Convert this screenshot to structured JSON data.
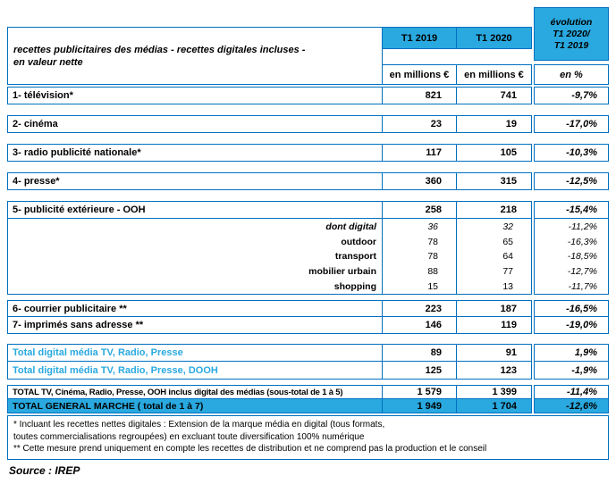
{
  "colors": {
    "accent": "#29A9E0",
    "border": "#0070C0"
  },
  "table": {
    "corner": {
      "line1": "recettes publicitaires des médias - recettes digitales incluses -",
      "line2": "en valeur nette"
    },
    "col_headers": {
      "t1_2019": "T1 2019",
      "t1_2020": "T1 2020",
      "evolution": [
        "évolution",
        "T1 2020/",
        "T1 2019"
      ]
    },
    "units": {
      "millions1": "en millions €",
      "millions2": "en millions €",
      "percent": "en %"
    },
    "rows": {
      "tv": {
        "label": "1- télévision*",
        "v2019": "821",
        "v2020": "741",
        "evol": "-9,7%"
      },
      "cinema": {
        "label": "2- cinéma",
        "v2019": "23",
        "v2020": "19",
        "evol": "-17,0%"
      },
      "radio": {
        "label": "3- radio publicité nationale*",
        "v2019": "117",
        "v2020": "105",
        "evol": "-10,3%"
      },
      "presse": {
        "label": "4- presse*",
        "v2019": "360",
        "v2020": "315",
        "evol": "-12,5%"
      },
      "ooh": {
        "label": "5- publicité extérieure - OOH",
        "v2019": "258",
        "v2020": "218",
        "evol": "-15,4%"
      },
      "ooh_sub": [
        {
          "label": "dont digital",
          "v2019": "36",
          "v2020": "32",
          "evol": "-11,2%"
        },
        {
          "label": "outdoor",
          "v2019": "78",
          "v2020": "65",
          "evol": "-16,3%"
        },
        {
          "label": "transport",
          "v2019": "78",
          "v2020": "64",
          "evol": "-18,5%"
        },
        {
          "label": "mobilier urbain",
          "v2019": "88",
          "v2020": "77",
          "evol": "-12,7%"
        },
        {
          "label": "shopping",
          "v2019": "15",
          "v2020": "13",
          "evol": "-11,7%"
        }
      ],
      "courrier": {
        "label": "6- courrier publicitaire **",
        "v2019": "223",
        "v2020": "187",
        "evol": "-16,5%"
      },
      "imprimes": {
        "label": "7- imprimés sans adresse **",
        "v2019": "146",
        "v2020": "119",
        "evol": "-19,0%"
      },
      "digital1": {
        "label": "Total digital média TV, Radio, Presse",
        "v2019": "89",
        "v2020": "91",
        "evol": "1,9%"
      },
      "digital2": {
        "label": "Total digital média TV, Radio, Presse, DOOH",
        "v2019": "125",
        "v2020": "123",
        "evol": "-1,9%"
      },
      "total_sub": {
        "label": "TOTAL TV, Cinéma, Radio, Presse, OOH inclus digital des médias (sous-total de 1 à 5)",
        "v2019": "1 579",
        "v2020": "1 399",
        "evol": "-11,4%"
      },
      "total_general": {
        "label": "TOTAL GENERAL MARCHE ( total de 1 à 7)",
        "v2019": "1 949",
        "v2020": "1 704",
        "evol": "-12,6%"
      }
    }
  },
  "footnotes": {
    "note1_line1": "* Incluant les recettes nettes digitales : Extension de la marque média en digital (tous formats,",
    "note1_line2": "toutes commercialisations regroupées) en excluant toute diversification 100% numérique",
    "note2": "** Cette mesure prend uniquement en compte les recettes de distribution et ne comprend pas la production et le conseil"
  },
  "source": "Source : IREP"
}
